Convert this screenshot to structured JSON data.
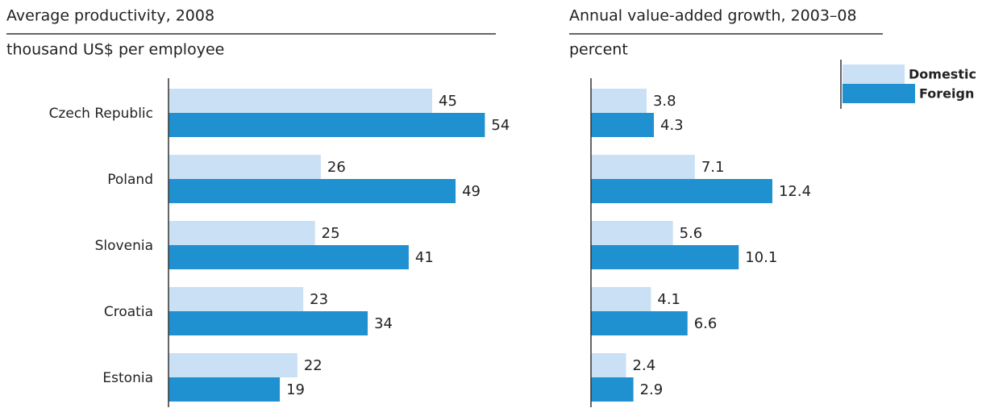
{
  "chart_data": [
    {
      "type": "bar",
      "orientation": "horizontal",
      "title": "Average productivity, 2008",
      "subtitle": "thousand US$ per employee",
      "categories": [
        "Czech Republic",
        "Poland",
        "Slovenia",
        "Croatia",
        "Estonia"
      ],
      "series": [
        {
          "color": "#c9e0f5",
          "values": [
            45,
            26,
            25,
            23,
            22
          ]
        },
        {
          "color": "#1f90d0",
          "values": [
            54,
            49,
            41,
            34,
            19
          ]
        }
      ],
      "xlim": [
        0,
        60
      ]
    },
    {
      "type": "bar",
      "orientation": "horizontal",
      "title": "Annual value-added growth, 2003–08",
      "subtitle": "percent",
      "series": [
        {
          "name": "Domestic",
          "color": "#c9e0f5",
          "values": [
            3.8,
            7.1,
            5.6,
            4.1,
            2.4
          ]
        },
        {
          "name": "Foreign",
          "color": "#1f90d0",
          "values": [
            4.3,
            12.4,
            10.1,
            6.6,
            2.9
          ]
        }
      ],
      "xlim": [
        0,
        14
      ]
    }
  ]
}
